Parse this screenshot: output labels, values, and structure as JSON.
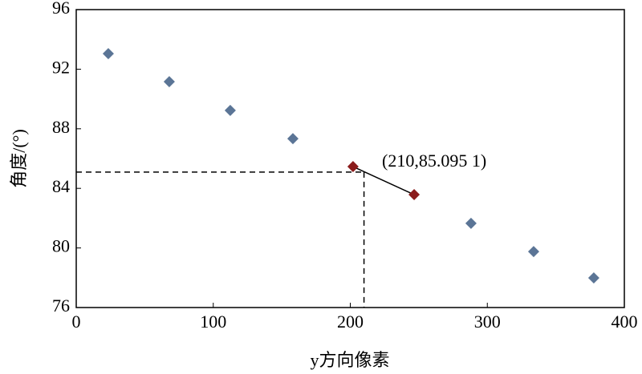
{
  "chart_data": {
    "type": "scatter",
    "x_label": "y方向像素",
    "y_label": "角度/(°)",
    "series": [
      {
        "color": "#5b7596",
        "x": [
          23.4,
          67.9,
          112.4,
          158.1,
          288.1,
          333.8,
          377.7
        ],
        "values": [
          93.04,
          91.16,
          89.23,
          87.34,
          81.65,
          79.76,
          77.99
        ]
      },
      {
        "color": "#8b1c1c",
        "x": [
          202,
          246.6
        ],
        "values": [
          85.46,
          83.58
        ]
      }
    ],
    "annotation": {
      "text": "(210,85.095 1)",
      "x": 210,
      "y": 85.0951
    },
    "xlim": [
      0,
      400
    ],
    "xticks": [
      0,
      100,
      200,
      300,
      400
    ],
    "ylim": [
      76,
      96
    ],
    "yticks": [
      76,
      80,
      84,
      88,
      92,
      96
    ],
    "grid": false
  }
}
